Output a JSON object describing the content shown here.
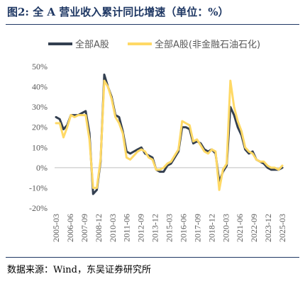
{
  "title": "图2: 全 A 营业收入累计同比增速（单位：%）",
  "source": "数据来源：Wind，东吴证券研究所",
  "chart_data": {
    "type": "line",
    "title": "",
    "xlabel": "",
    "ylabel": "",
    "ylim": [
      -20,
      50
    ],
    "yticks": [
      -20,
      -10,
      0,
      10,
      20,
      30,
      40,
      50
    ],
    "ytick_labels": [
      "-20%",
      "-10%",
      "0%",
      "10%",
      "20%",
      "30%",
      "40%",
      "50%"
    ],
    "xtick_labels": [
      "2005-03",
      "2006-06",
      "2007-09",
      "2008-12",
      "2010-03",
      "2011-06",
      "2012-09",
      "2013-12",
      "2015-03",
      "2016-06",
      "2017-09",
      "2018-12",
      "2020-03",
      "2021-06",
      "2022-09",
      "2023-12",
      "2025-03"
    ],
    "grid": false,
    "legend_position": "top",
    "series": [
      {
        "name": "全部A股",
        "color": "#333f50",
        "values": [
          25,
          24,
          19,
          21,
          26,
          26,
          26,
          27,
          28,
          17,
          -13,
          -11,
          3,
          46,
          40,
          35,
          26,
          25,
          18,
          8,
          7,
          8,
          9,
          10,
          7,
          6,
          5,
          -1,
          -2,
          -2,
          1,
          2,
          5,
          8,
          20,
          20,
          19,
          12,
          13,
          12,
          9,
          8,
          9,
          7,
          -7,
          -2,
          1,
          30,
          26,
          20,
          16,
          9,
          7,
          8,
          4,
          3,
          2,
          0,
          -1,
          -1,
          -1,
          0
        ]
      },
      {
        "name": "全部A股(非金融石油石化)",
        "color": "#ffd966",
        "values": [
          22,
          22,
          15,
          20,
          26,
          25,
          26,
          26,
          26,
          14,
          -10,
          -10,
          4,
          43,
          40,
          34,
          25,
          22,
          17,
          5,
          4,
          6,
          8,
          9,
          8,
          5,
          4,
          -1,
          -1,
          0,
          2,
          3,
          6,
          9,
          23,
          22,
          21,
          13,
          14,
          11,
          8,
          7,
          9,
          8,
          -11,
          -1,
          2,
          43,
          30,
          23,
          18,
          10,
          8,
          7,
          4,
          3,
          3,
          1,
          0,
          0,
          -1,
          1
        ]
      }
    ]
  }
}
